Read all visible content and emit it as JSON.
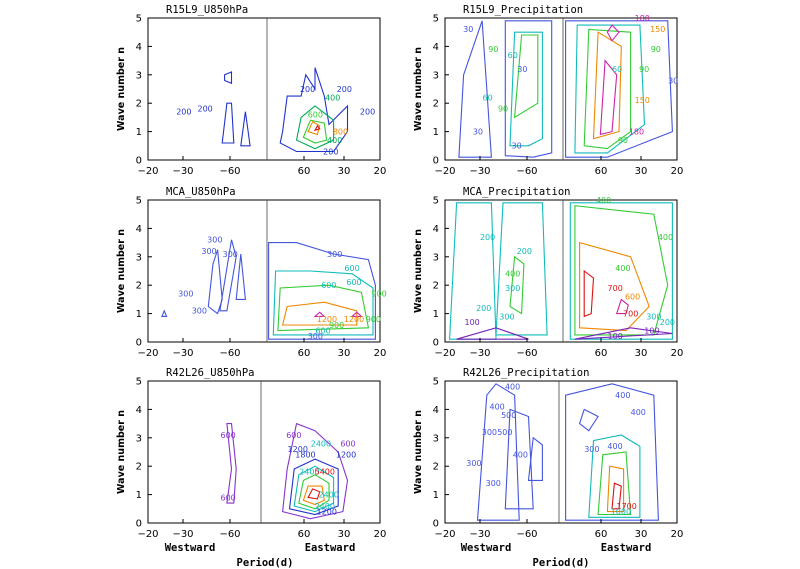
{
  "figure": {
    "xlabel_west": "Westward",
    "xlabel_center": "Period(d)",
    "xlabel_east": "Eastward"
  },
  "chart_data": [
    {
      "type": "contour",
      "title": "R15L9_U850hPa",
      "ylabel": "Wave number n",
      "ylim": [
        0,
        5
      ],
      "x_ticks": [
        "−20",
        "−30",
        "−60",
        "60",
        "30",
        "20"
      ],
      "y_ticks": [
        "0",
        "1",
        "2",
        "3",
        "4",
        "5"
      ],
      "contour_labels": [
        {
          "text": "200",
          "x": -0.043,
          "y": 1.6,
          "color": "#2233cc"
        },
        {
          "text": "200",
          "x": -0.032,
          "y": 1.7,
          "color": "#2233cc"
        },
        {
          "text": "200",
          "x": 0.021,
          "y": 2.4,
          "color": "#2233cc"
        },
        {
          "text": "200",
          "x": 0.04,
          "y": 2.4,
          "color": "#2233cc"
        },
        {
          "text": "200",
          "x": 0.052,
          "y": 1.6,
          "color": "#2233cc"
        },
        {
          "text": "400",
          "x": 0.034,
          "y": 2.1,
          "color": "#00aa55"
        },
        {
          "text": "600",
          "x": 0.025,
          "y": 1.5,
          "color": "#33cc33"
        },
        {
          "text": "800",
          "x": 0.038,
          "y": 0.9,
          "color": "#ee8800"
        },
        {
          "text": "400",
          "x": 0.035,
          "y": 0.6,
          "color": "#00aa55"
        },
        {
          "text": "200",
          "x": 0.033,
          "y": 0.2,
          "color": "#2233cc"
        }
      ]
    },
    {
      "type": "contour",
      "title": "R15L9_Precipitation",
      "ylabel": "Wave number n",
      "ylim": [
        0,
        5
      ],
      "x_ticks": [
        "−20",
        "−30",
        "−60",
        "60",
        "30",
        "20"
      ],
      "y_ticks": [
        "0",
        "1",
        "2",
        "3",
        "4",
        "5"
      ],
      "contour_labels": [
        {
          "text": "30",
          "x": -0.049,
          "y": 4.5,
          "color": "#4455dd"
        },
        {
          "text": "90",
          "x": -0.036,
          "y": 3.8,
          "color": "#33cc33"
        },
        {
          "text": "60",
          "x": -0.026,
          "y": 3.6,
          "color": "#11bbbb"
        },
        {
          "text": "30",
          "x": -0.021,
          "y": 3.1,
          "color": "#4455dd"
        },
        {
          "text": "60",
          "x": -0.039,
          "y": 2.1,
          "color": "#11bbbb"
        },
        {
          "text": "90",
          "x": -0.031,
          "y": 1.7,
          "color": "#33cc33"
        },
        {
          "text": "30",
          "x": -0.044,
          "y": 0.9,
          "color": "#4455dd"
        },
        {
          "text": "30",
          "x": -0.024,
          "y": 0.4,
          "color": "#4455dd"
        },
        {
          "text": "180",
          "x": 0.041,
          "y": 4.9,
          "color": "#cc22aa"
        },
        {
          "text": "150",
          "x": 0.049,
          "y": 4.5,
          "color": "#ee8800"
        },
        {
          "text": "90",
          "x": 0.048,
          "y": 3.8,
          "color": "#33cc33"
        },
        {
          "text": "60",
          "x": 0.028,
          "y": 3.1,
          "color": "#11bbbb"
        },
        {
          "text": "90",
          "x": 0.042,
          "y": 3.1,
          "color": "#33cc33"
        },
        {
          "text": "150",
          "x": 0.041,
          "y": 2.0,
          "color": "#ee8800"
        },
        {
          "text": "180",
          "x": 0.038,
          "y": 0.9,
          "color": "#cc22aa"
        },
        {
          "text": "90",
          "x": 0.031,
          "y": 0.6,
          "color": "#33cc33"
        },
        {
          "text": "30",
          "x": 0.057,
          "y": 2.7,
          "color": "#4455dd"
        }
      ]
    },
    {
      "type": "contour",
      "title": "MCA_U850hPa",
      "ylabel": "Wave number n",
      "ylim": [
        0,
        5
      ],
      "x_ticks": [
        "−20",
        "−30",
        "−60",
        "60",
        "30",
        "20"
      ],
      "y_ticks": [
        "0",
        "1",
        "2",
        "3",
        "4",
        "5"
      ],
      "contour_labels": [
        {
          "text": "300",
          "x": -0.027,
          "y": 3.5,
          "color": "#4455dd"
        },
        {
          "text": "300",
          "x": -0.019,
          "y": 3.0,
          "color": "#4455dd"
        },
        {
          "text": "300",
          "x": -0.03,
          "y": 3.1,
          "color": "#4455dd"
        },
        {
          "text": "300",
          "x": -0.042,
          "y": 1.6,
          "color": "#4455dd"
        },
        {
          "text": "300",
          "x": -0.035,
          "y": 1.0,
          "color": "#4455dd"
        },
        {
          "text": "300",
          "x": 0.035,
          "y": 3.0,
          "color": "#4455dd"
        },
        {
          "text": "600",
          "x": 0.044,
          "y": 2.5,
          "color": "#11bbbb"
        },
        {
          "text": "600",
          "x": 0.032,
          "y": 1.9,
          "color": "#11bbbb"
        },
        {
          "text": "600",
          "x": 0.045,
          "y": 2.0,
          "color": "#11bbbb"
        },
        {
          "text": "900",
          "x": 0.058,
          "y": 1.6,
          "color": "#33cc33"
        },
        {
          "text": "900",
          "x": 0.055,
          "y": 0.7,
          "color": "#33cc33"
        },
        {
          "text": "1200",
          "x": 0.045,
          "y": 0.7,
          "color": "#ee8800"
        },
        {
          "text": "1200",
          "x": 0.031,
          "y": 0.7,
          "color": "#ee8800"
        },
        {
          "text": "900",
          "x": 0.036,
          "y": 0.5,
          "color": "#33cc33"
        },
        {
          "text": "600",
          "x": 0.029,
          "y": 0.3,
          "color": "#11bbbb"
        },
        {
          "text": "300",
          "x": 0.025,
          "y": 0.1,
          "color": "#4455dd"
        }
      ]
    },
    {
      "type": "contour",
      "title": "MCA_Precipitation",
      "ylabel": "Wave number n",
      "ylim": [
        0,
        5
      ],
      "x_ticks": [
        "−20",
        "−30",
        "−60",
        "60",
        "30",
        "20"
      ],
      "y_ticks": [
        "0",
        "1",
        "2",
        "3",
        "4",
        "5"
      ],
      "contour_labels": [
        {
          "text": "200",
          "x": -0.039,
          "y": 3.6,
          "color": "#11bbbb"
        },
        {
          "text": "200",
          "x": -0.02,
          "y": 3.1,
          "color": "#11bbbb"
        },
        {
          "text": "400",
          "x": -0.026,
          "y": 2.3,
          "color": "#33cc33"
        },
        {
          "text": "300",
          "x": -0.026,
          "y": 1.8,
          "color": "#11bbbb"
        },
        {
          "text": "200",
          "x": -0.041,
          "y": 1.1,
          "color": "#11bbbb"
        },
        {
          "text": "300",
          "x": -0.029,
          "y": 0.8,
          "color": "#11bbbb"
        },
        {
          "text": "100",
          "x": -0.047,
          "y": 0.6,
          "color": "#7722bb"
        },
        {
          "text": "400",
          "x": 0.021,
          "y": 4.9,
          "color": "#33cc33"
        },
        {
          "text": "400",
          "x": 0.053,
          "y": 3.6,
          "color": "#33cc33"
        },
        {
          "text": "400",
          "x": 0.031,
          "y": 2.5,
          "color": "#33cc33"
        },
        {
          "text": "700",
          "x": 0.027,
          "y": 1.8,
          "color": "#dd1111"
        },
        {
          "text": "600",
          "x": 0.036,
          "y": 1.5,
          "color": "#ee8800"
        },
        {
          "text": "700",
          "x": 0.035,
          "y": 0.9,
          "color": "#dd1111"
        },
        {
          "text": "300",
          "x": 0.047,
          "y": 0.8,
          "color": "#11bbbb"
        },
        {
          "text": "200",
          "x": 0.054,
          "y": 0.6,
          "color": "#11bbbb"
        },
        {
          "text": "100",
          "x": 0.046,
          "y": 0.3,
          "color": "#7722bb"
        },
        {
          "text": "100",
          "x": 0.027,
          "y": 0.1,
          "color": "#7722bb"
        }
      ]
    },
    {
      "type": "contour",
      "title": "R42L26_U850hPa",
      "ylabel": "Wave number n",
      "ylim": [
        0,
        5
      ],
      "x_ticks": [
        "−20",
        "−30",
        "−60",
        "60",
        "30",
        "20"
      ],
      "y_ticks": [
        "0",
        "1",
        "2",
        "3",
        "4",
        "5"
      ],
      "contour_labels": [
        {
          "text": "600",
          "x": -0.017,
          "y": 3.0,
          "color": "#8833cc"
        },
        {
          "text": "600",
          "x": -0.017,
          "y": 0.8,
          "color": "#8833cc"
        },
        {
          "text": "600",
          "x": 0.017,
          "y": 3.0,
          "color": "#8833cc"
        },
        {
          "text": "600",
          "x": 0.045,
          "y": 2.7,
          "color": "#8833cc"
        },
        {
          "text": "2400",
          "x": 0.031,
          "y": 2.7,
          "color": "#11bbbb"
        },
        {
          "text": "1200",
          "x": 0.019,
          "y": 2.5,
          "color": "#2233cc"
        },
        {
          "text": "1800",
          "x": 0.023,
          "y": 2.3,
          "color": "#2233cc"
        },
        {
          "text": "1200",
          "x": 0.044,
          "y": 2.3,
          "color": "#2233cc"
        },
        {
          "text": "2400",
          "x": 0.025,
          "y": 1.7,
          "color": "#11bbbb"
        },
        {
          "text": "5400",
          "x": 0.033,
          "y": 1.7,
          "color": "#dd1111"
        },
        {
          "text": "2400",
          "x": 0.035,
          "y": 0.9,
          "color": "#11bbbb"
        },
        {
          "text": "2400",
          "x": 0.033,
          "y": 0.5,
          "color": "#11bbbb"
        },
        {
          "text": "1200",
          "x": 0.034,
          "y": 0.3,
          "color": "#2233cc"
        }
      ]
    },
    {
      "type": "contour",
      "title": "R42L26_Precipitation",
      "ylabel": "Wave number n",
      "ylim": [
        0,
        5
      ],
      "x_ticks": [
        "−20",
        "−30",
        "−60",
        "60",
        "30",
        "20"
      ],
      "y_ticks": [
        "0",
        "1",
        "2",
        "3",
        "4",
        "5"
      ],
      "contour_labels": [
        {
          "text": "400",
          "x": -0.024,
          "y": 4.7,
          "color": "#4455dd"
        },
        {
          "text": "400",
          "x": -0.032,
          "y": 4.0,
          "color": "#4455dd"
        },
        {
          "text": "500",
          "x": -0.026,
          "y": 3.7,
          "color": "#4455dd"
        },
        {
          "text": "300",
          "x": -0.036,
          "y": 3.1,
          "color": "#4455dd"
        },
        {
          "text": "500",
          "x": -0.028,
          "y": 3.1,
          "color": "#4455dd"
        },
        {
          "text": "400",
          "x": -0.02,
          "y": 2.3,
          "color": "#4455dd"
        },
        {
          "text": "300",
          "x": -0.044,
          "y": 2.0,
          "color": "#4455dd"
        },
        {
          "text": "300",
          "x": -0.034,
          "y": 1.3,
          "color": "#4455dd"
        },
        {
          "text": "400",
          "x": 0.033,
          "y": 4.4,
          "color": "#4455dd"
        },
        {
          "text": "400",
          "x": 0.041,
          "y": 3.8,
          "color": "#4455dd"
        },
        {
          "text": "300",
          "x": 0.017,
          "y": 2.5,
          "color": "#4455dd"
        },
        {
          "text": "400",
          "x": 0.029,
          "y": 2.6,
          "color": "#4455dd"
        },
        {
          "text": "1700",
          "x": 0.035,
          "y": 0.5,
          "color": "#dd1111"
        },
        {
          "text": "1000",
          "x": 0.032,
          "y": 0.3,
          "color": "#11bbbb"
        }
      ]
    }
  ]
}
